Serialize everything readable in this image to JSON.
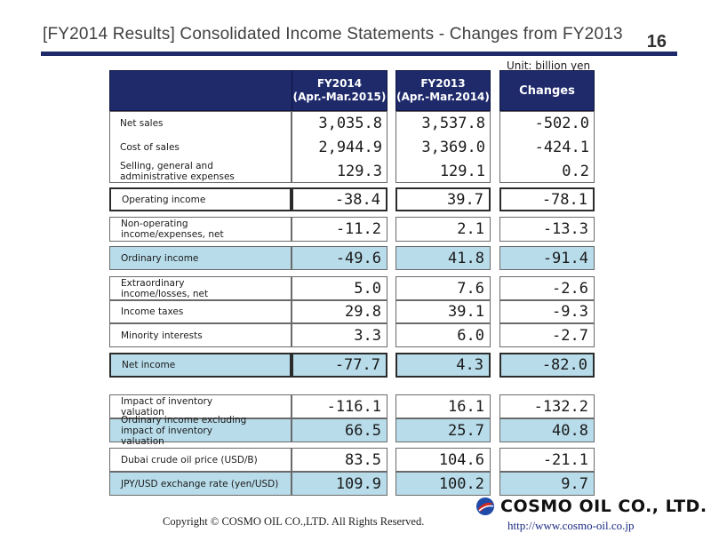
{
  "slide": {
    "title": "[FY2014 Results] Consolidated Income Statements - Changes from FY2013",
    "page_number": "16",
    "unit": "Unit: billion yen"
  },
  "table": {
    "headers": {
      "fy2014_line1": "FY2014",
      "fy2014_line2": "(Apr.-Mar.2015)",
      "fy2013_line1": "FY2013",
      "fy2013_line2": "(Apr.-Mar.2014)",
      "changes": "Changes"
    },
    "rows": [
      {
        "label": "Net sales",
        "fy2014": "3,035.8",
        "fy2013": "3,537.8",
        "change": "-502.0"
      },
      {
        "label": "Cost of sales",
        "fy2014": "2,944.9",
        "fy2013": "3,369.0",
        "change": "-424.1"
      },
      {
        "label": "Selling, general and administrative expenses",
        "fy2014": "129.3",
        "fy2013": "129.1",
        "change": "0.2"
      },
      {
        "label": "Operating income",
        "fy2014": "-38.4",
        "fy2013": "39.7",
        "change": "-78.1"
      },
      {
        "label": "Non-operating income/expenses, net",
        "fy2014": "-11.2",
        "fy2013": "2.1",
        "change": "-13.3"
      },
      {
        "label": "Ordinary income",
        "fy2014": "-49.6",
        "fy2013": "41.8",
        "change": "-91.4"
      },
      {
        "label": "Extraordinary income/losses, net",
        "fy2014": "5.0",
        "fy2013": "7.6",
        "change": "-2.6"
      },
      {
        "label": "Income taxes",
        "fy2014": "29.8",
        "fy2013": "39.1",
        "change": "-9.3"
      },
      {
        "label": "Minority interests",
        "fy2014": "3.3",
        "fy2013": "6.0",
        "change": "-2.7"
      },
      {
        "label": "Net income",
        "fy2014": "-77.7",
        "fy2013": "4.3",
        "change": "-82.0"
      },
      {
        "label": "Impact of inventory valuation",
        "fy2014": "-116.1",
        "fy2013": "16.1",
        "change": "-132.2"
      },
      {
        "label": "Ordinary income excluding impact of inventory valuation",
        "fy2014": "66.5",
        "fy2013": "25.7",
        "change": "40.8"
      },
      {
        "label": "Dubai crude oil price (USD/B)",
        "fy2014": "83.5",
        "fy2013": "104.6",
        "change": "-21.1"
      },
      {
        "label": "JPY/USD exchange rate (yen/USD)",
        "fy2014": "109.9",
        "fy2013": "100.2",
        "change": "9.7"
      }
    ]
  },
  "footer": {
    "copyright": "Copyright © COSMO OIL CO.,LTD. All Rights Reserved.",
    "company": "COSMO OIL CO., LTD.",
    "url": "http://www.cosmo-oil.co.jp"
  },
  "colors": {
    "header_navy": "#1f2a6b",
    "highlight_blue": "#b8dcea",
    "logo_red": "#d9261c",
    "logo_blue": "#1f4aa8"
  }
}
